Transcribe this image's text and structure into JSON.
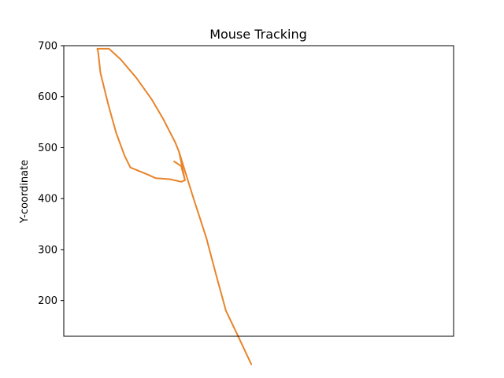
{
  "chart_data": {
    "type": "line",
    "title": "Mouse Tracking",
    "xlabel": "",
    "ylabel": "Y-coordinate",
    "ylim": [
      130,
      700
    ],
    "xlim": [
      0,
      1000
    ],
    "y_ticks": [
      200,
      300,
      400,
      500,
      600,
      700
    ],
    "x_ticks_visible": false,
    "grid": false,
    "series": [
      {
        "color": "#e8842a",
        "points": [
          [
            86,
            694
          ],
          [
            116,
            694
          ],
          [
            146,
            673
          ],
          [
            186,
            637
          ],
          [
            226,
            594
          ],
          [
            256,
            555
          ],
          [
            286,
            510
          ],
          [
            296,
            491
          ],
          [
            311,
            436
          ],
          [
            301,
            464
          ],
          [
            283,
            473
          ],
          [
            301,
            464
          ],
          [
            311,
            436
          ],
          [
            301,
            433
          ],
          [
            273,
            438
          ],
          [
            236,
            440
          ],
          [
            216,
            447
          ],
          [
            171,
            461
          ],
          [
            156,
            484
          ],
          [
            134,
            530
          ],
          [
            114,
            585
          ],
          [
            94,
            647
          ],
          [
            88,
            688
          ],
          [
            86,
            694
          ]
        ]
      },
      {
        "color": "#e8842a",
        "points": [
          [
            296,
            491
          ],
          [
            331,
            405
          ],
          [
            366,
            322
          ],
          [
            391,
            250
          ],
          [
            416,
            180
          ],
          [
            446,
            132
          ],
          [
            481,
            75
          ]
        ]
      }
    ]
  }
}
